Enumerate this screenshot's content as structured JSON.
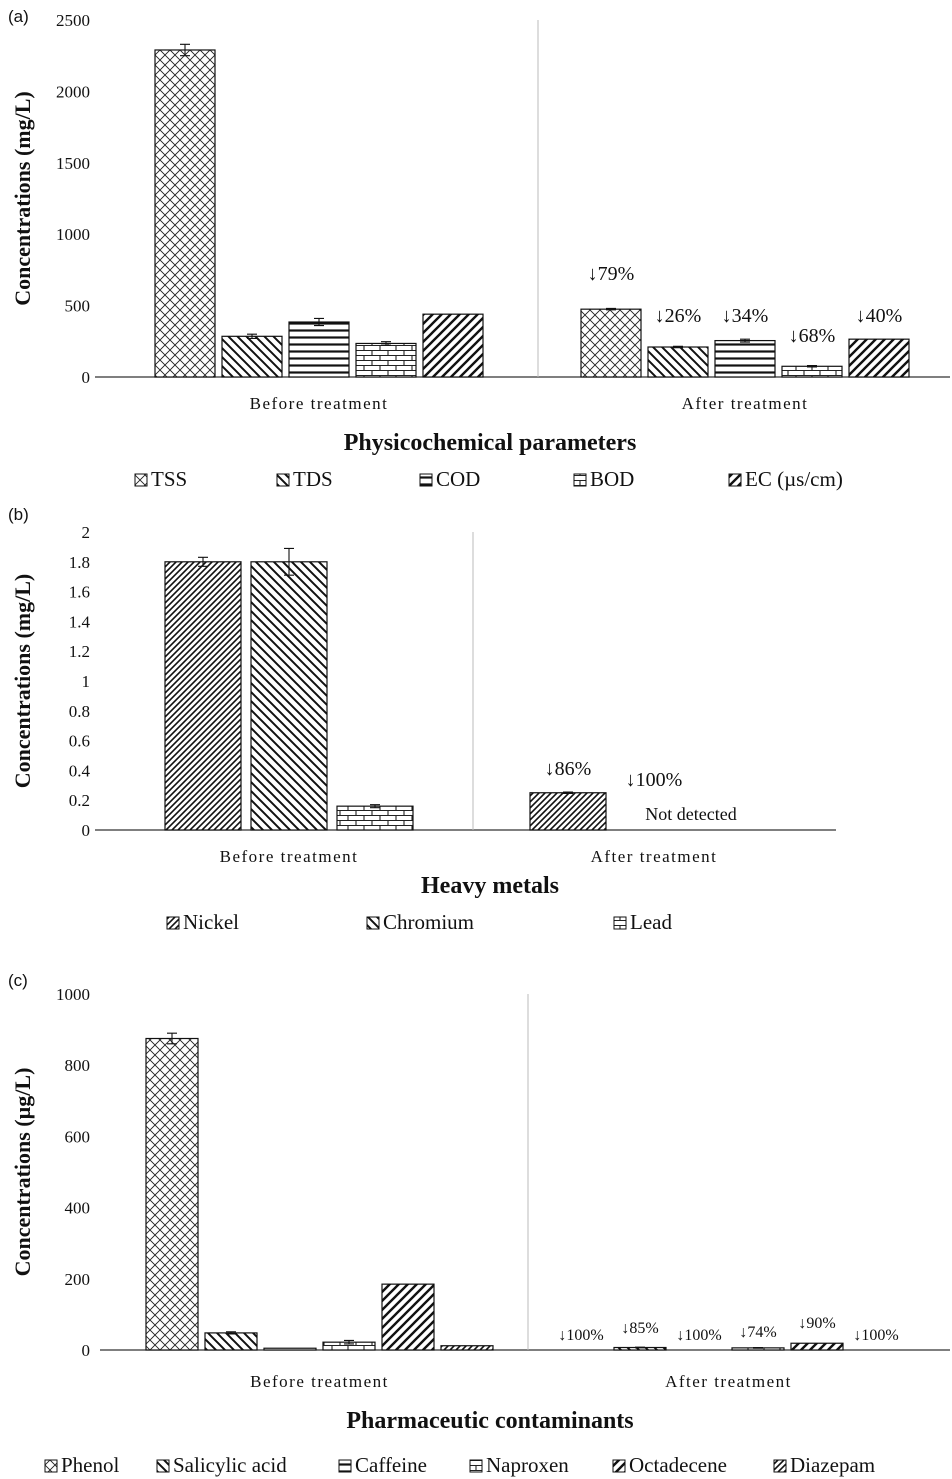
{
  "chart_data": [
    {
      "panel_label": "(a)",
      "type": "bar",
      "title": "Physicochemical parameters",
      "ylabel": "Concentrations (mg/L)",
      "xlabel": "",
      "ylim": [
        0,
        2500
      ],
      "yticks": [
        "0",
        "500",
        "1000",
        "1500",
        "2000",
        "2500"
      ],
      "categories": [
        "Before treatment",
        "After treatment"
      ],
      "legend_position": "bottom",
      "grid": false,
      "series": [
        {
          "name": "TSS",
          "pattern": "crosshatch",
          "values": [
            2290,
            475
          ],
          "errors": [
            40,
            5
          ],
          "annotation": "↓79%"
        },
        {
          "name": "TDS",
          "pattern": "back-diagonal",
          "values": [
            285,
            210
          ],
          "errors": [
            15,
            5
          ],
          "annotation": "↓26%"
        },
        {
          "name": "COD",
          "pattern": "horizontal",
          "values": [
            385,
            255
          ],
          "errors": [
            25,
            10
          ],
          "annotation": "↓34%"
        },
        {
          "name": "BOD",
          "pattern": "brick",
          "values": [
            235,
            75
          ],
          "errors": [
            12,
            5
          ],
          "annotation": "↓68%"
        },
        {
          "name": "EC (µs/cm)",
          "pattern": "diagonal",
          "values": [
            440,
            265
          ],
          "errors": [
            0,
            0
          ],
          "annotation": "↓40%"
        }
      ]
    },
    {
      "panel_label": "(b)",
      "type": "bar",
      "title": "Heavy metals",
      "ylabel": "Concentrations (mg/L)",
      "xlabel": "",
      "ylim": [
        0,
        2
      ],
      "yticks": [
        "0",
        "0.2",
        "0.4",
        "0.6",
        "0.8",
        "1",
        "1.2",
        "1.4",
        "1.6",
        "1.8",
        "2"
      ],
      "categories": [
        "Before treatment",
        "After treatment"
      ],
      "legend_position": "bottom",
      "grid": false,
      "not_detected_label": "Not detected",
      "series": [
        {
          "name": "Nickel",
          "pattern": "dense-diagonal",
          "values": [
            1.8,
            0.25
          ],
          "errors": [
            0.03,
            0.005
          ],
          "annotation": "↓86%"
        },
        {
          "name": "Chromium",
          "pattern": "back-diagonal",
          "values": [
            1.8,
            0
          ],
          "errors": [
            0.09,
            0
          ],
          "annotation": "↓100%"
        },
        {
          "name": "Lead",
          "pattern": "brick",
          "values": [
            0.16,
            0
          ],
          "errors": [
            0.01,
            0
          ],
          "annotation": ""
        }
      ]
    },
    {
      "panel_label": "(c)",
      "type": "bar",
      "title": "Pharmaceutic contaminants",
      "ylabel": "Concentrations (µg/L)",
      "xlabel": "",
      "ylim": [
        0,
        1000
      ],
      "yticks": [
        "0",
        "200",
        "400",
        "600",
        "800",
        "1000"
      ],
      "categories": [
        "Before treatment",
        "After treatment"
      ],
      "legend_position": "bottom",
      "grid": false,
      "series": [
        {
          "name": "Phenol",
          "pattern": "crosshatch",
          "values": [
            875,
            0
          ],
          "errors": [
            15,
            0
          ],
          "annotation": "↓100%"
        },
        {
          "name": "Salicylic acid",
          "pattern": "back-diagonal",
          "values": [
            48,
            7
          ],
          "errors": [
            3,
            1
          ],
          "annotation": "↓85%"
        },
        {
          "name": "Caffeine",
          "pattern": "horizontal",
          "values": [
            5,
            0
          ],
          "errors": [
            0,
            0
          ],
          "annotation": "↓100%"
        },
        {
          "name": "Naproxen",
          "pattern": "brick",
          "values": [
            22,
            6
          ],
          "errors": [
            5,
            1
          ],
          "annotation": "↓74%"
        },
        {
          "name": "Octadecene",
          "pattern": "diagonal",
          "values": [
            185,
            19
          ],
          "errors": [
            0,
            0
          ],
          "annotation": "↓90%"
        },
        {
          "name": "Diazepam",
          "pattern": "dense-diagonal",
          "values": [
            12,
            0
          ],
          "errors": [
            0,
            0
          ],
          "annotation": "↓100%"
        }
      ]
    }
  ]
}
